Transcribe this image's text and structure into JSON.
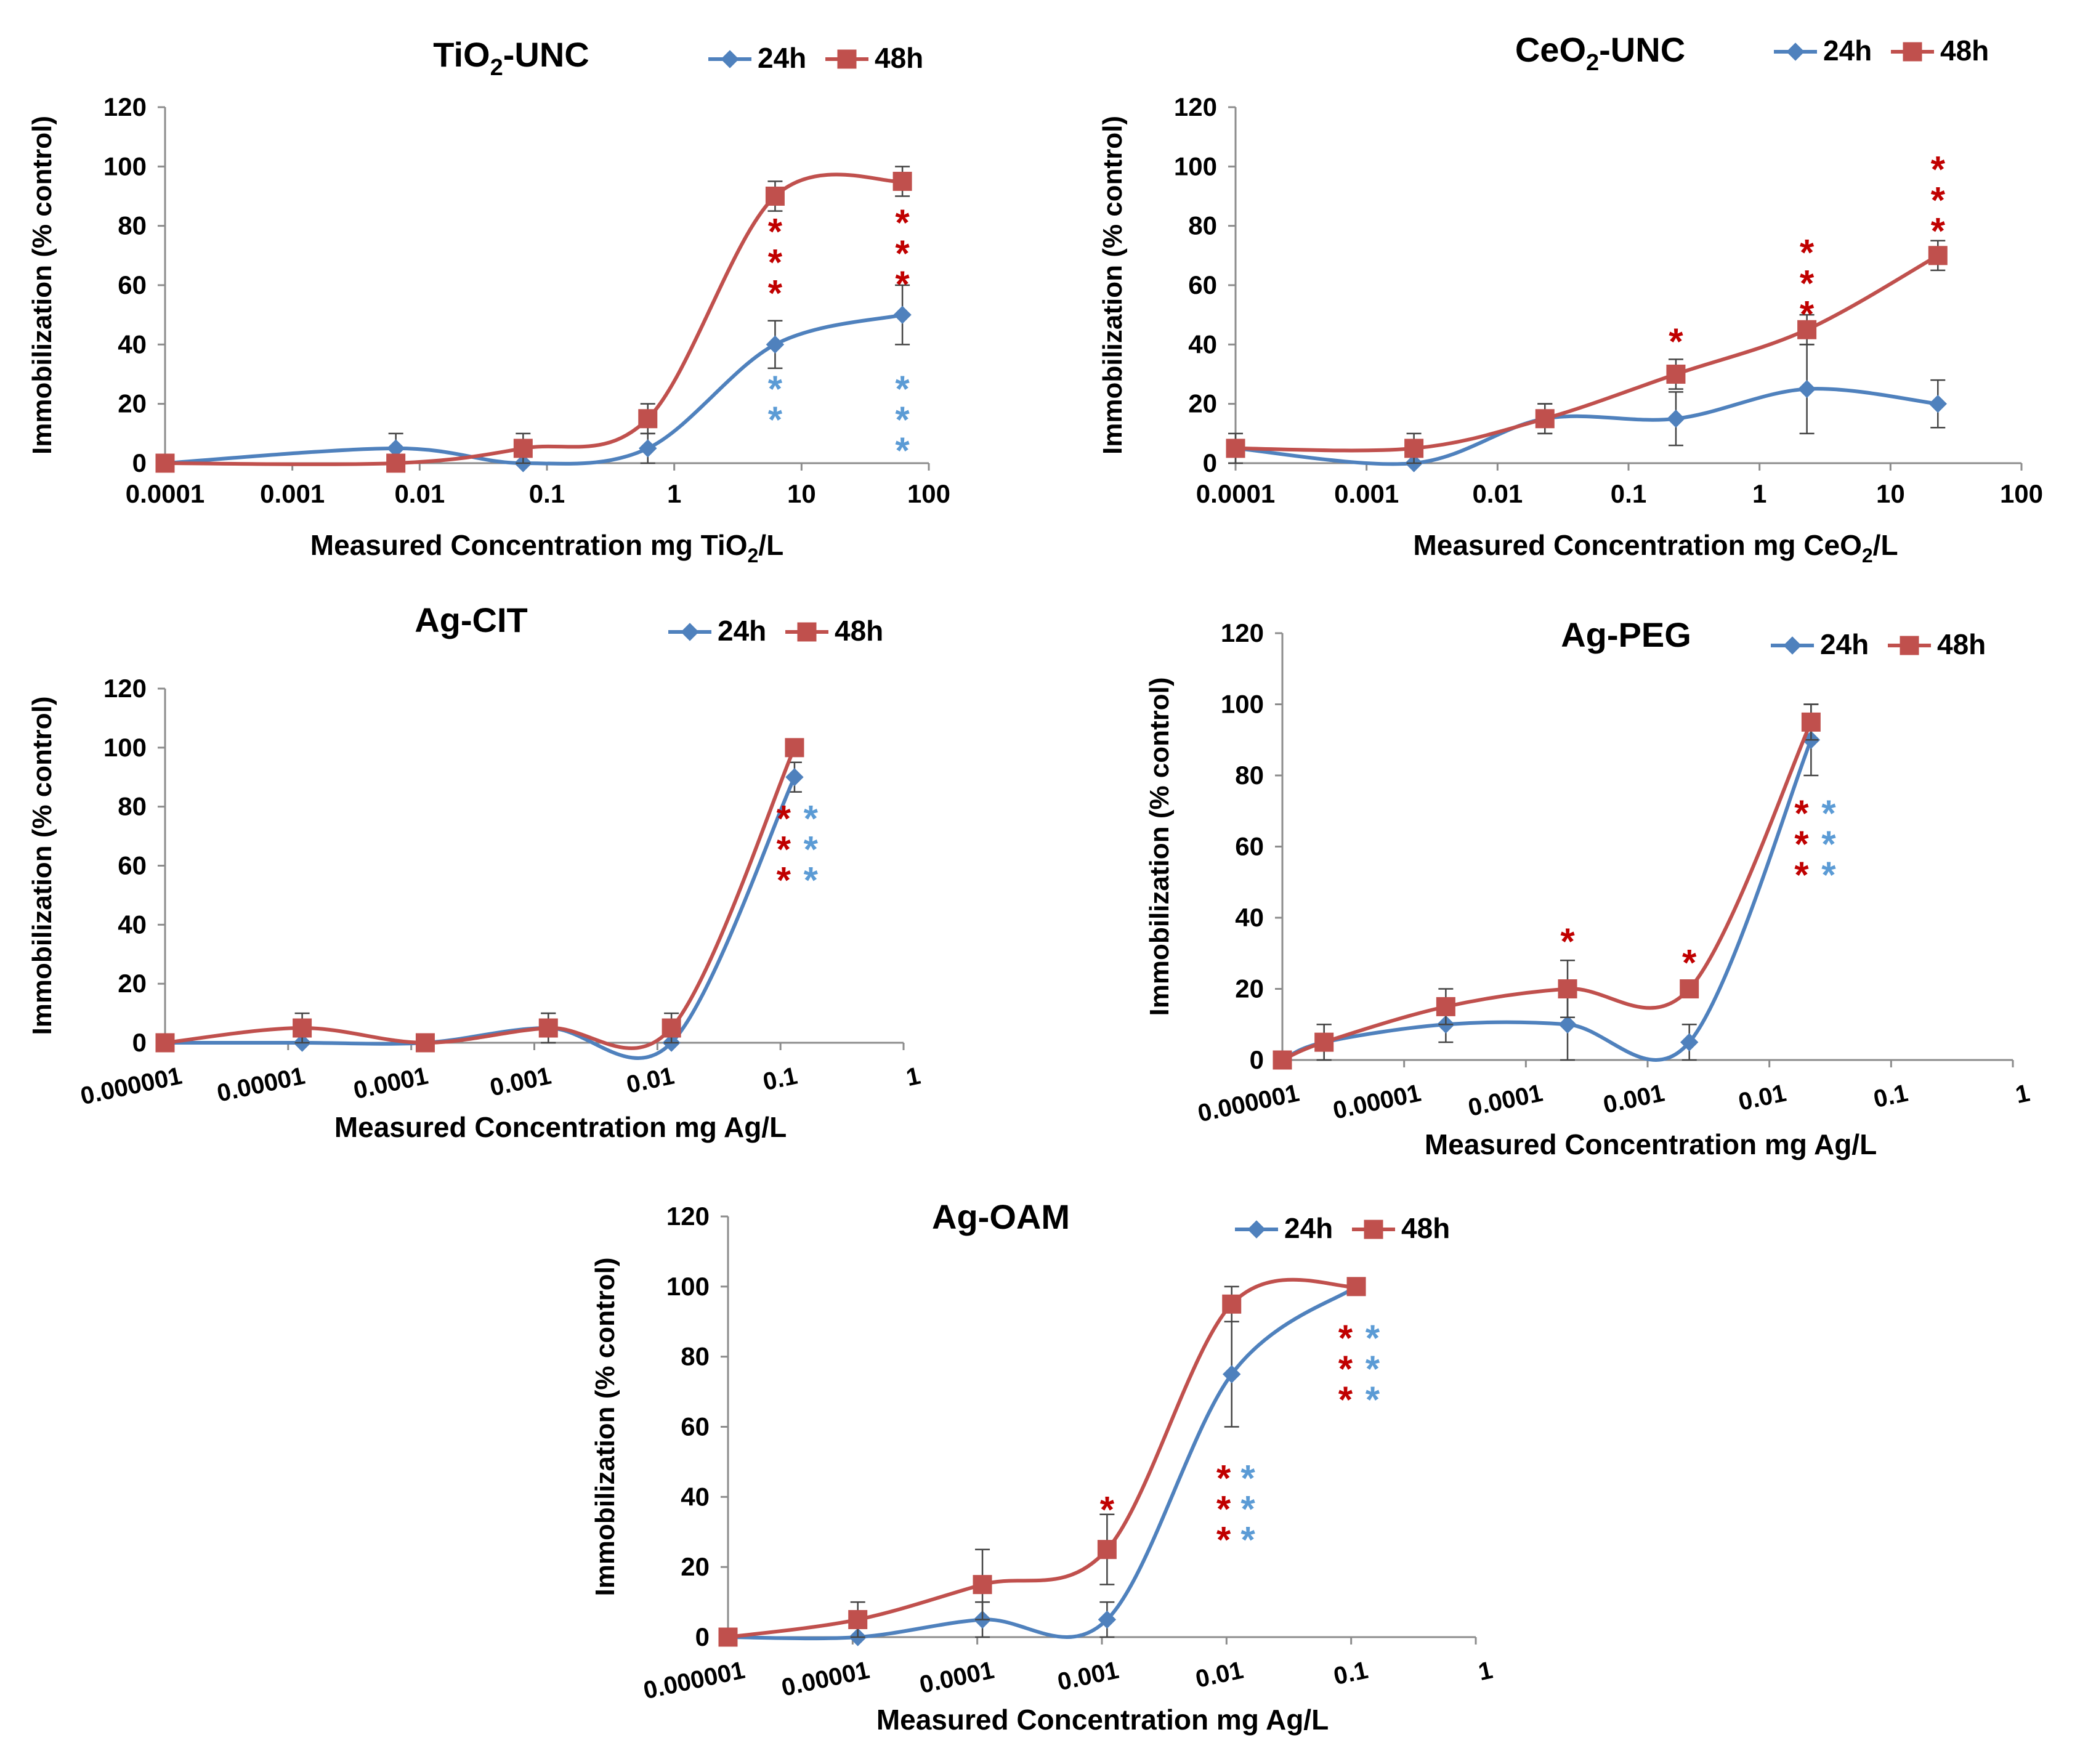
{
  "colors": {
    "s24h": "#4F81BD",
    "s48h": "#C0504D",
    "star_red": "#C00000",
    "star_blue": "#5B9BD5"
  },
  "chart_data": [
    {
      "id": "tio2",
      "type": "line",
      "title": "TiO",
      "title_sub": "2",
      "title_suffix": "-UNC",
      "xlabel": "Measured Concentration mg TiO",
      "xlabel_sub": "2",
      "xlabel_suffix": "/L",
      "ylabel": "Immobilization (% control)",
      "xscale": "log",
      "xlim": [
        0.0001,
        100
      ],
      "xticks": [
        "0.0001",
        "0.001",
        "0.01",
        "0.1",
        "1",
        "10",
        "100"
      ],
      "ylim": [
        0,
        120
      ],
      "yticks": [
        "0",
        "20",
        "40",
        "60",
        "80",
        "100",
        "120"
      ],
      "legend": [
        "24h",
        "48h"
      ],
      "series": [
        {
          "name": "24h",
          "x": [
            0.0001,
            0.0065,
            0.065,
            0.62,
            6.2,
            62
          ],
          "y": [
            0,
            5,
            0,
            5,
            40,
            50
          ],
          "err": [
            0,
            5,
            0,
            5,
            8,
            10
          ]
        },
        {
          "name": "48h",
          "x": [
            0.0001,
            0.0065,
            0.065,
            0.62,
            6.2,
            62
          ],
          "y": [
            0,
            0,
            5,
            15,
            90,
            95
          ],
          "err": [
            0,
            0,
            5,
            5,
            5,
            5
          ]
        }
      ],
      "stars": [
        {
          "x": 6.2,
          "y_top": 80,
          "count": 3,
          "color": "red"
        },
        {
          "x": 6.2,
          "y_top": 27,
          "count": 2,
          "color": "blue"
        },
        {
          "x": 62,
          "y_top": 83,
          "count": 3,
          "color": "red"
        },
        {
          "x": 62,
          "y_top": 27,
          "count": 3,
          "color": "blue"
        }
      ]
    },
    {
      "id": "ceo2",
      "type": "line",
      "title": "CeO",
      "title_sub": "2",
      "title_suffix": "-UNC",
      "xlabel": "Measured Concentration mg CeO",
      "xlabel_sub": "2",
      "xlabel_suffix": "/L",
      "ylabel": "Immobilization (% control)",
      "xscale": "log",
      "xlim": [
        0.0001,
        100
      ],
      "xticks": [
        "0.0001",
        "0.001",
        "0.01",
        "0.1",
        "1",
        "10",
        "100"
      ],
      "ylim": [
        0,
        120
      ],
      "yticks": [
        "0",
        "20",
        "40",
        "60",
        "80",
        "100",
        "120"
      ],
      "legend": [
        "24h",
        "48h"
      ],
      "series": [
        {
          "name": "24h",
          "x": [
            0.0001,
            0.0023,
            0.023,
            0.23,
            2.3,
            23
          ],
          "y": [
            5,
            0,
            15,
            15,
            25,
            20
          ],
          "err": [
            5,
            0,
            5,
            9,
            15,
            8
          ]
        },
        {
          "name": "48h",
          "x": [
            0.0001,
            0.0023,
            0.023,
            0.23,
            2.3,
            23
          ],
          "y": [
            5,
            5,
            15,
            30,
            45,
            70
          ],
          "err": [
            0,
            5,
            5,
            5,
            5,
            5
          ]
        }
      ],
      "stars": [
        {
          "x": 0.23,
          "y_top": 43,
          "count": 1,
          "color": "red"
        },
        {
          "x": 2.3,
          "y_top": 73,
          "count": 3,
          "color": "red"
        },
        {
          "x": 23,
          "y_top": 101,
          "count": 3,
          "color": "red"
        }
      ]
    },
    {
      "id": "agcit",
      "type": "line",
      "title": "Ag-CIT",
      "xlabel": "Measured Concentration mg Ag/L",
      "ylabel": "Immobilization (% control)",
      "xscale": "log",
      "xlim": [
        1e-06,
        1
      ],
      "xticks": [
        "0.000001",
        "0.00001",
        "0.0001",
        "0.001",
        "0.01",
        "0.1",
        "1"
      ],
      "ylim": [
        0,
        120
      ],
      "yticks": [
        "0",
        "20",
        "40",
        "60",
        "80",
        "100",
        "120"
      ],
      "legend": [
        "24h",
        "48h"
      ],
      "series": [
        {
          "name": "24h",
          "x": [
            1e-06,
            1.3e-05,
            0.00013,
            0.0013,
            0.013,
            0.13
          ],
          "y": [
            0,
            0,
            0,
            5,
            0,
            90
          ],
          "err": [
            0,
            0,
            0,
            5,
            0,
            5
          ]
        },
        {
          "name": "48h",
          "x": [
            1e-06,
            1.3e-05,
            0.00013,
            0.0013,
            0.013,
            0.13
          ],
          "y": [
            0,
            5,
            0,
            5,
            5,
            100
          ],
          "err": [
            0,
            5,
            0,
            5,
            5,
            0
          ]
        }
      ],
      "stars": [
        {
          "x": 0.13,
          "y_top": 78,
          "count": 3,
          "color": "red",
          "dx": -0.4
        },
        {
          "x": 0.13,
          "y_top": 78,
          "count": 3,
          "color": "blue",
          "dx": 0.6
        }
      ]
    },
    {
      "id": "agpeg",
      "type": "line",
      "title": "Ag-PEG",
      "xlabel": "Measured Concentration mg Ag/L",
      "ylabel": "Immobilization (% control)",
      "xscale": "log",
      "xlim": [
        1e-06,
        1
      ],
      "xticks": [
        "0.000001",
        "0.00001",
        "0.0001",
        "0.001",
        "0.01",
        "0.1",
        "1"
      ],
      "ylim": [
        0,
        120
      ],
      "yticks": [
        "0",
        "20",
        "40",
        "60",
        "80",
        "100",
        "120"
      ],
      "legend": [
        "24h",
        "48h"
      ],
      "series": [
        {
          "name": "24h",
          "x": [
            1e-06,
            2.2e-06,
            2.2e-05,
            0.00022,
            0.0022,
            0.022
          ],
          "y": [
            0,
            5,
            10,
            10,
            5,
            90
          ],
          "err": [
            0,
            5,
            5,
            10,
            5,
            10
          ]
        },
        {
          "name": "48h",
          "x": [
            1e-06,
            2.2e-06,
            2.2e-05,
            0.00022,
            0.0022,
            0.022
          ],
          "y": [
            0,
            5,
            15,
            20,
            20,
            95
          ],
          "err": [
            0,
            5,
            5,
            8,
            0,
            5
          ]
        }
      ],
      "stars": [
        {
          "x": 0.00022,
          "y_top": 35,
          "count": 1,
          "color": "red"
        },
        {
          "x": 0.0022,
          "y_top": 29,
          "count": 1,
          "color": "red"
        },
        {
          "x": 0.022,
          "y_top": 71,
          "count": 3,
          "color": "red",
          "dx": -0.35
        },
        {
          "x": 0.022,
          "y_top": 71,
          "count": 3,
          "color": "blue",
          "dx": 0.65
        }
      ]
    },
    {
      "id": "agoam",
      "type": "line",
      "title": "Ag-OAM",
      "xlabel": "Measured Concentration mg Ag/L",
      "ylabel": "Immobilization (% control)",
      "xscale": "log",
      "xlim": [
        1e-06,
        1
      ],
      "xticks": [
        "0.000001",
        "0.00001",
        "0.0001",
        "0.001",
        "0.01",
        "0.1",
        "1"
      ],
      "ylim": [
        0,
        120
      ],
      "yticks": [
        "0",
        "20",
        "40",
        "60",
        "80",
        "100",
        "120"
      ],
      "legend": [
        "24h",
        "48h"
      ],
      "series": [
        {
          "name": "24h",
          "x": [
            1e-06,
            1.1e-05,
            0.00011,
            0.0011,
            0.011,
            0.11
          ],
          "y": [
            0,
            0,
            5,
            5,
            75,
            100
          ],
          "err": [
            0,
            0,
            5,
            5,
            15,
            0
          ]
        },
        {
          "name": "48h",
          "x": [
            1e-06,
            1.1e-05,
            0.00011,
            0.0011,
            0.011,
            0.11
          ],
          "y": [
            0,
            5,
            15,
            25,
            95,
            100
          ],
          "err": [
            0,
            5,
            10,
            10,
            5,
            0
          ]
        }
      ],
      "stars": [
        {
          "x": 0.0011,
          "y_top": 38,
          "count": 1,
          "color": "red"
        },
        {
          "x": 0.011,
          "y_top": 47,
          "count": 3,
          "color": "red",
          "dx": -0.3
        },
        {
          "x": 0.011,
          "y_top": 47,
          "count": 3,
          "color": "blue",
          "dx": 0.6
        },
        {
          "x": 0.11,
          "y_top": 87,
          "count": 3,
          "color": "red",
          "dx": -0.4
        },
        {
          "x": 0.11,
          "y_top": 87,
          "count": 3,
          "color": "blue",
          "dx": 0.6
        }
      ]
    }
  ]
}
